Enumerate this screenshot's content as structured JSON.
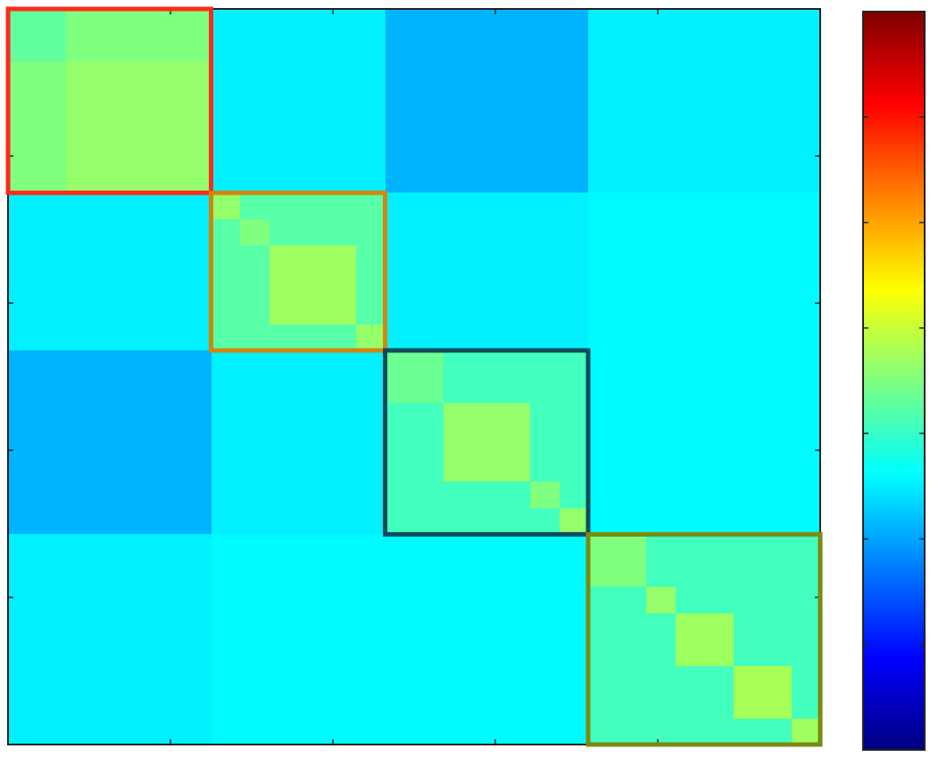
{
  "chart_data": {
    "type": "heatmap",
    "title": "",
    "xlabel": "",
    "ylabel": "",
    "colormap": "jet",
    "colorbar": {
      "visible": true,
      "placement": "right",
      "tick_labels_shown": false
    },
    "axes": {
      "tick_labels_shown": false,
      "grid": false
    },
    "value_range": [
      0,
      1
    ],
    "n_cells": 28,
    "blocks": [
      {
        "name": "block-1",
        "start": 0,
        "end": 7,
        "within_value": 0.5,
        "sub_blocks": [
          {
            "start": 0,
            "end": 2,
            "value": 0.47
          },
          {
            "start": 2,
            "end": 7,
            "value": 0.52
          }
        ]
      },
      {
        "name": "block-2",
        "start": 7,
        "end": 13,
        "within_value": 0.46,
        "sub_blocks": [
          {
            "start": 7,
            "end": 8,
            "value": 0.52
          },
          {
            "start": 8,
            "end": 9,
            "value": 0.5
          },
          {
            "start": 9,
            "end": 12,
            "value": 0.53
          },
          {
            "start": 12,
            "end": 13,
            "value": 0.52
          }
        ]
      },
      {
        "name": "block-3",
        "start": 13,
        "end": 20,
        "within_value": 0.44,
        "sub_blocks": [
          {
            "start": 13,
            "end": 15,
            "value": 0.48
          },
          {
            "start": 15,
            "end": 18,
            "value": 0.52
          },
          {
            "start": 18,
            "end": 19,
            "value": 0.5
          },
          {
            "start": 19,
            "end": 20,
            "value": 0.52
          }
        ]
      },
      {
        "name": "block-4",
        "start": 20,
        "end": 28,
        "within_value": 0.44,
        "sub_blocks": [
          {
            "start": 20,
            "end": 22,
            "value": 0.5
          },
          {
            "start": 22,
            "end": 23,
            "value": 0.52
          },
          {
            "start": 23,
            "end": 25,
            "value": 0.53
          },
          {
            "start": 25,
            "end": 27,
            "value": 0.54
          },
          {
            "start": 27,
            "end": 28,
            "value": 0.53
          }
        ]
      }
    ],
    "between_block_values": [
      [
        null,
        0.36,
        0.3,
        0.36
      ],
      [
        0.36,
        null,
        0.36,
        0.37
      ],
      [
        0.3,
        0.36,
        null,
        0.37
      ],
      [
        0.36,
        0.37,
        0.37,
        null
      ]
    ],
    "highlight_boxes": [
      {
        "block": "block-1",
        "color": "#ff2a1a"
      },
      {
        "block": "block-2",
        "color": "#d4860c"
      },
      {
        "block": "block-3",
        "color": "#0f4a5a"
      },
      {
        "block": "block-4",
        "color": "#7a8a10"
      }
    ]
  }
}
